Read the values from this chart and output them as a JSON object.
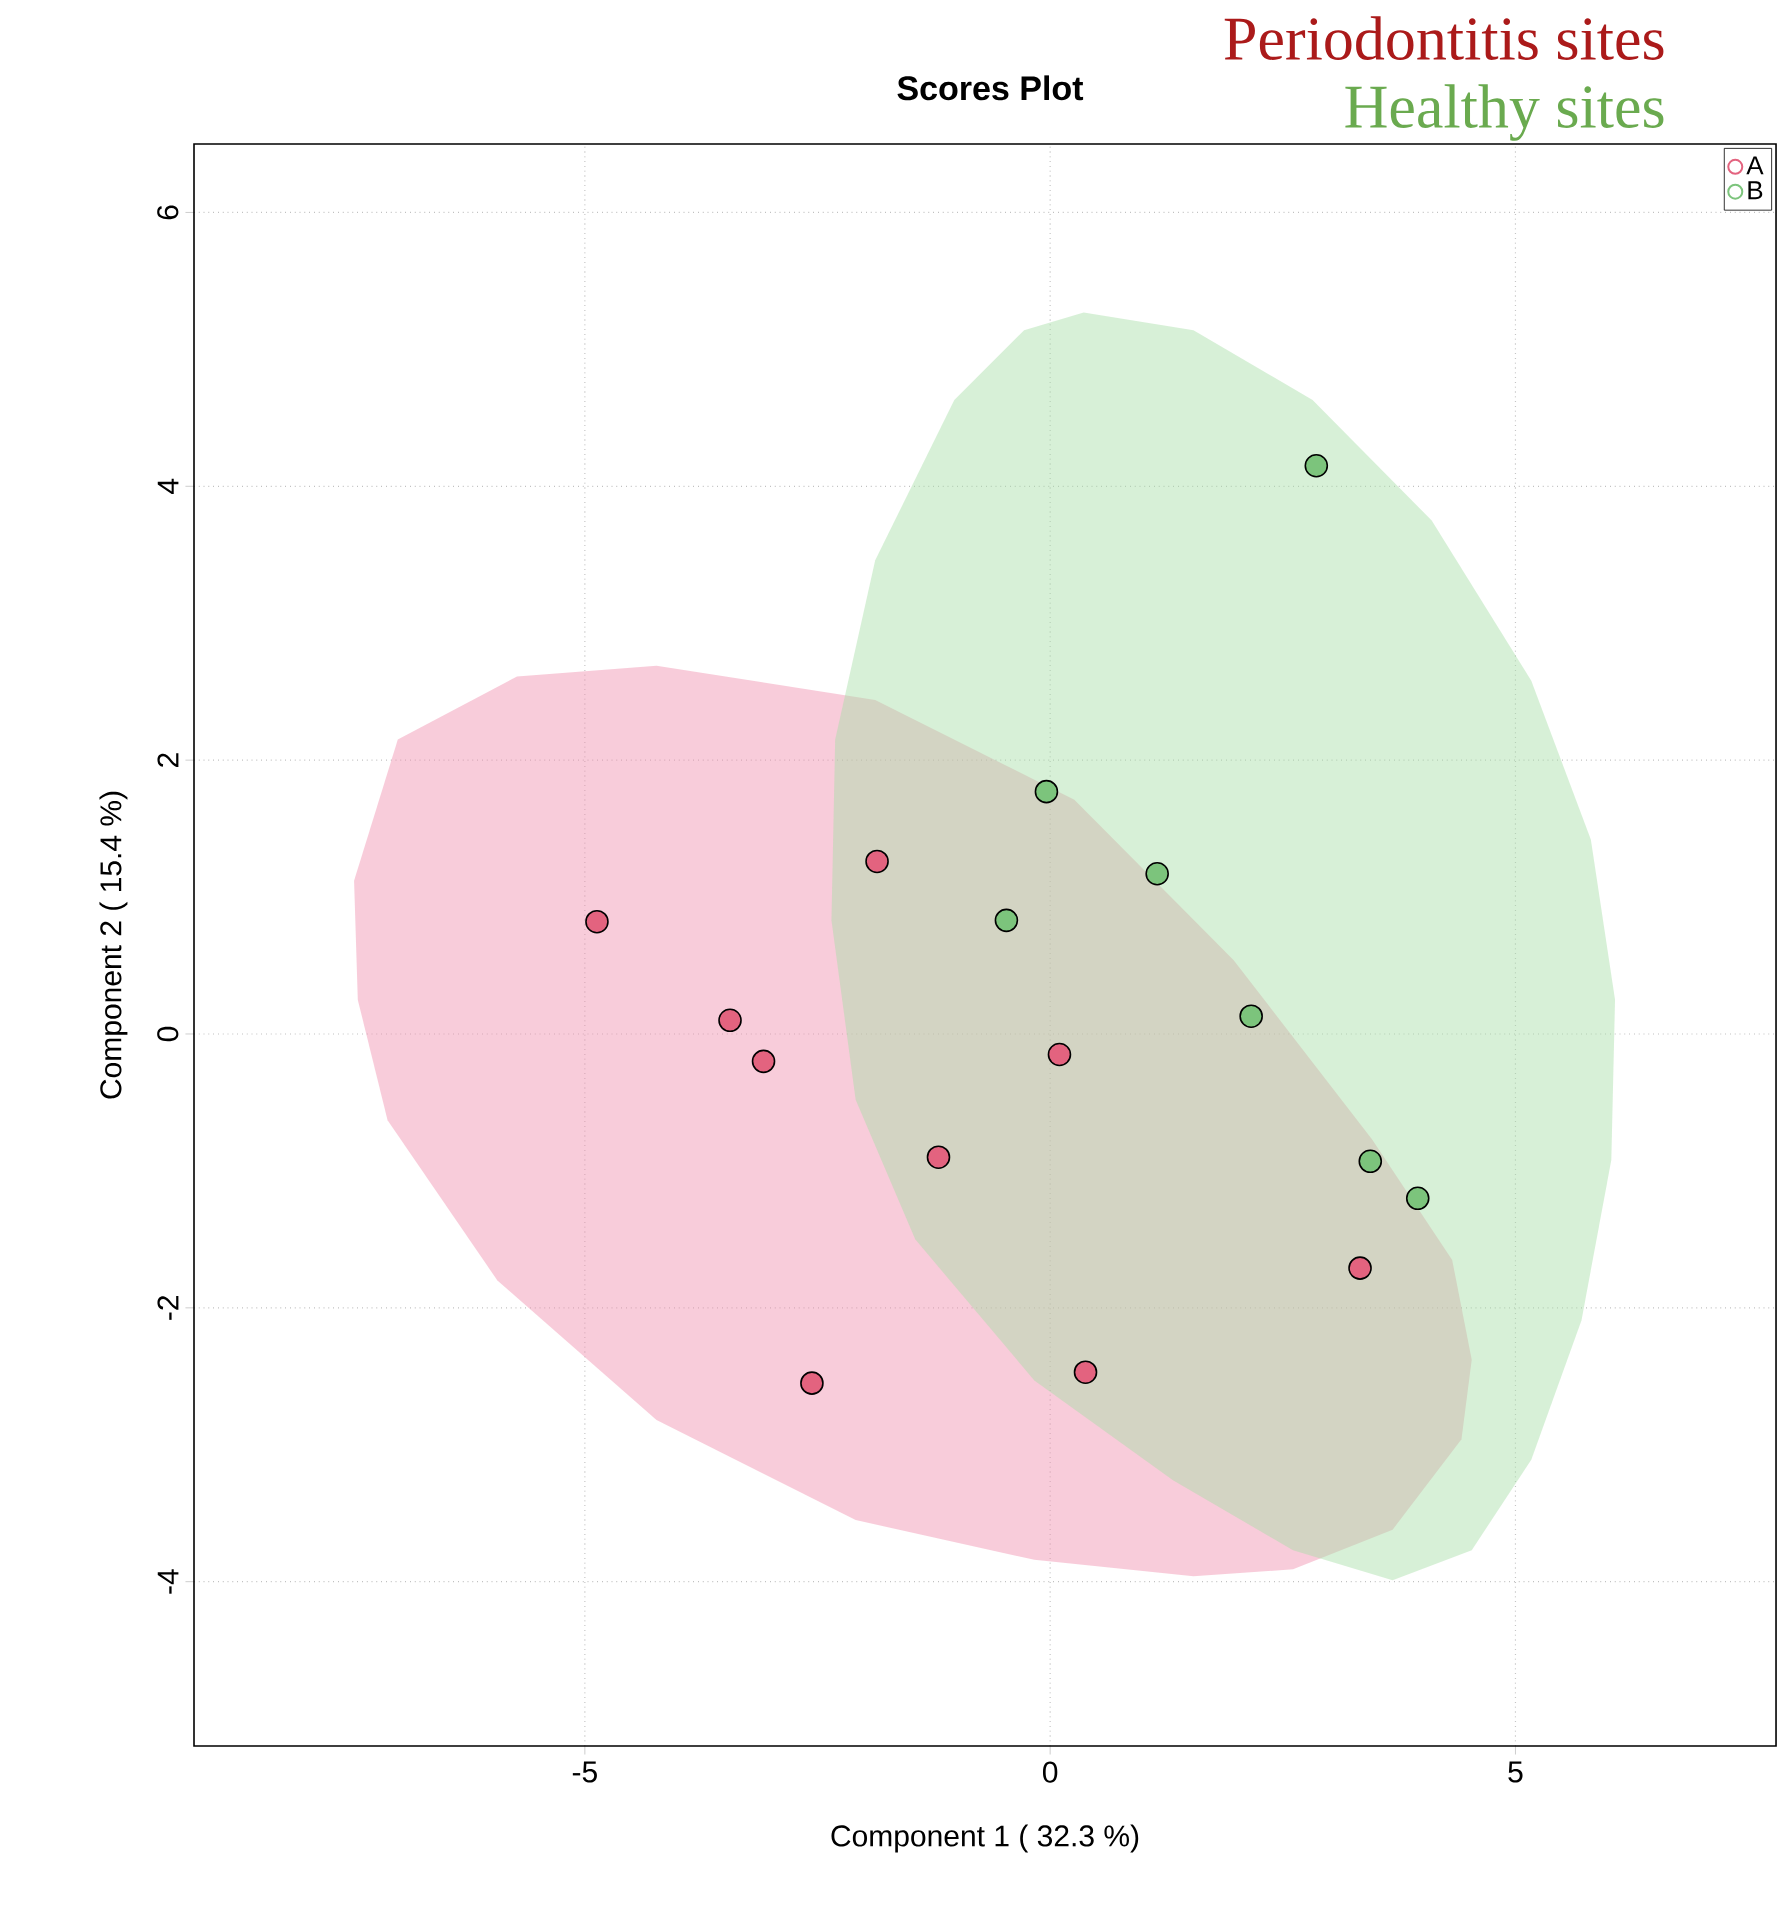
{
  "chart_data": {
    "type": "scatter",
    "title": "Scores Plot",
    "xlabel": "Component 1 ( 32.3 %)",
    "ylabel": "Component 2 ( 15.4 %)",
    "annotations": [
      "Periodontitis sites",
      "Healthy sites"
    ],
    "xlim": [
      -9.2,
      7.8
    ],
    "ylim": [
      -5.2,
      6.5
    ],
    "xticks": [
      -5,
      0,
      5
    ],
    "yticks": [
      -4,
      -2,
      0,
      2,
      4,
      6
    ],
    "grid": true,
    "legend": "top right",
    "series": [
      {
        "type": "area",
        "color": "#f08fad",
        "x": [
          -7.48,
          -7.01,
          -5.73,
          -4.23,
          -1.88,
          0.26,
          1.97,
          3.46,
          4.32,
          4.53,
          4.42,
          3.68,
          2.61,
          1.54,
          -0.17,
          -2.09,
          -4.23,
          -5.94,
          -7.12,
          -7.44,
          -7.48
        ],
        "values": [
          1.12,
          2.15,
          2.61,
          2.69,
          2.44,
          1.71,
          0.54,
          -0.77,
          -1.65,
          -2.38,
          -2.96,
          -3.62,
          -3.91,
          -3.96,
          -3.84,
          -3.55,
          -2.82,
          -1.8,
          -0.63,
          0.25,
          1.12
        ]
      },
      {
        "type": "area",
        "color": "#a6dea6",
        "x": [
          0.36,
          1.54,
          2.82,
          4.1,
          5.17,
          5.81,
          6.07,
          6.03,
          5.71,
          5.17,
          4.53,
          3.68,
          2.61,
          1.32,
          -0.17,
          -1.45,
          -2.09,
          -2.35,
          -2.31,
          -1.88,
          -1.03,
          -0.28,
          0.36
        ],
        "values": [
          5.27,
          5.14,
          4.63,
          3.75,
          2.58,
          1.42,
          0.25,
          -0.92,
          -2.09,
          -3.11,
          -3.77,
          -3.99,
          -3.77,
          -3.26,
          -2.53,
          -1.5,
          -0.48,
          0.83,
          2.15,
          3.46,
          4.63,
          5.14,
          5.27
        ]
      },
      {
        "name": "A",
        "marker": "circle",
        "color": "#e3637f",
        "x": [
          -4.87,
          -3.44,
          -3.08,
          -1.86,
          -1.2,
          0.1,
          -2.56,
          0.38,
          3.33
        ],
        "values": [
          0.82,
          0.1,
          -0.2,
          1.26,
          -0.9,
          -0.15,
          -2.55,
          -2.47,
          -1.71
        ]
      },
      {
        "name": "B",
        "marker": "circle",
        "color": "#7cc47c",
        "x": [
          2.86,
          -0.04,
          -0.47,
          1.15,
          2.16,
          3.44,
          3.95
        ],
        "values": [
          4.15,
          1.77,
          0.83,
          1.17,
          0.13,
          -0.93,
          -1.2
        ]
      }
    ]
  }
}
